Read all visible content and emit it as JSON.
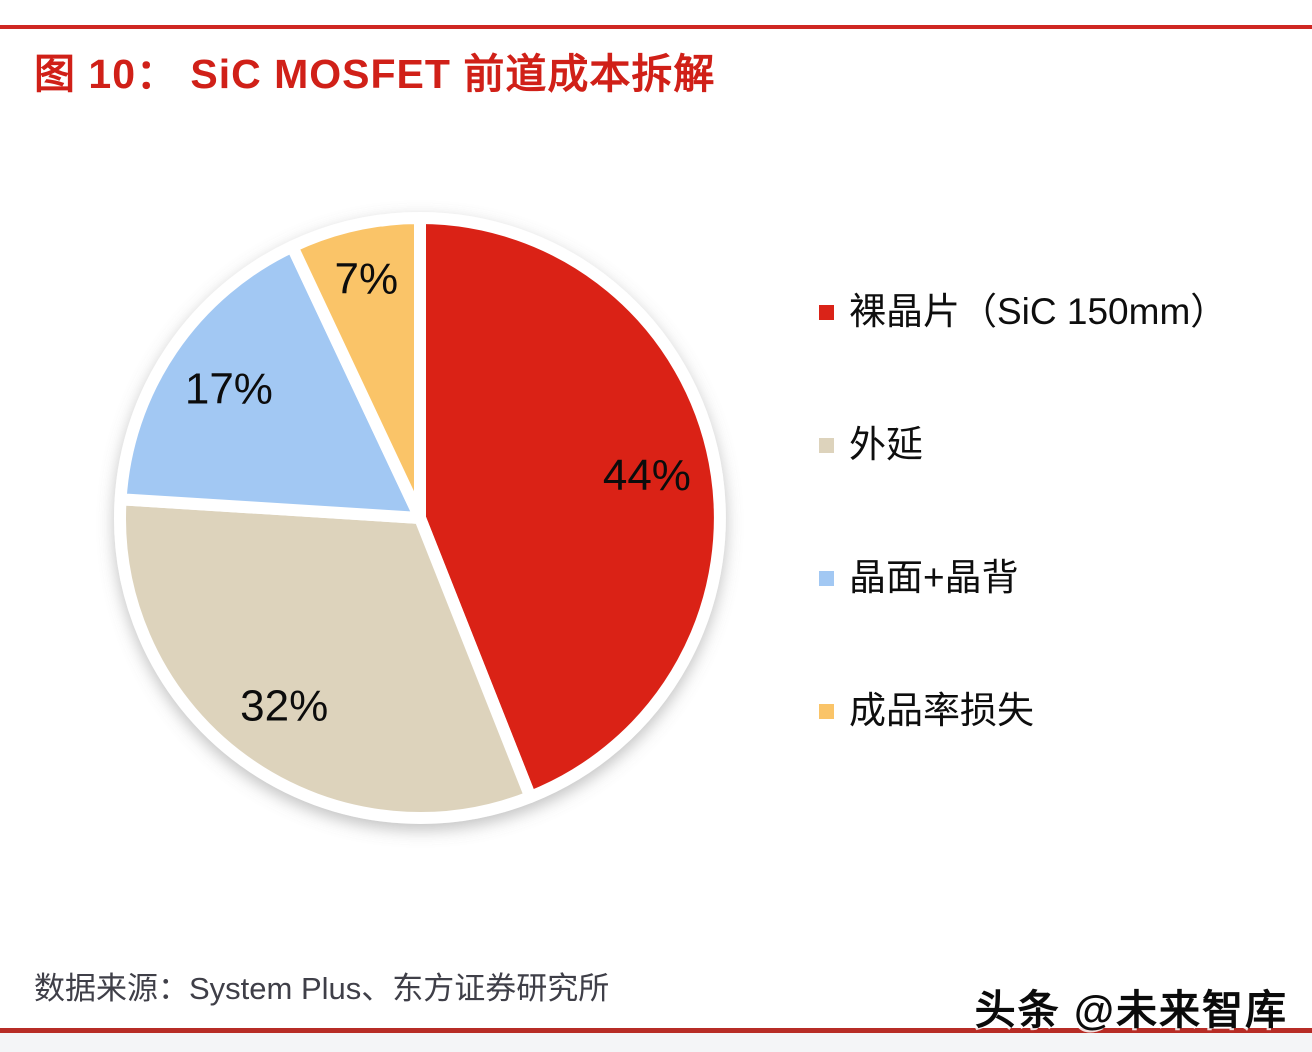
{
  "page": {
    "title": "图 10： SiC MOSFET 前道成本拆解",
    "source_note": "数据来源：System Plus、东方证券研究所",
    "watermark": "头条 @未来智库",
    "accent_color": "#cf2722"
  },
  "chart_data": {
    "type": "pie",
    "title": "图 10： SiC MOSFET 前道成本拆解",
    "categories": [
      "裸晶片（SiC 150mm）",
      "外延",
      "晶面+晶背",
      "成品率损失"
    ],
    "values": [
      44,
      32,
      17,
      7
    ],
    "data_labels": [
      "44%",
      "32%",
      "17%",
      "7%"
    ],
    "colors": [
      "#da2318",
      "#ddd3bc",
      "#a2c8f3",
      "#fac468"
    ],
    "start_angle_deg": 0,
    "direction": "clockwise",
    "legend_position": "right",
    "slice_border_color": "#ffffff"
  }
}
